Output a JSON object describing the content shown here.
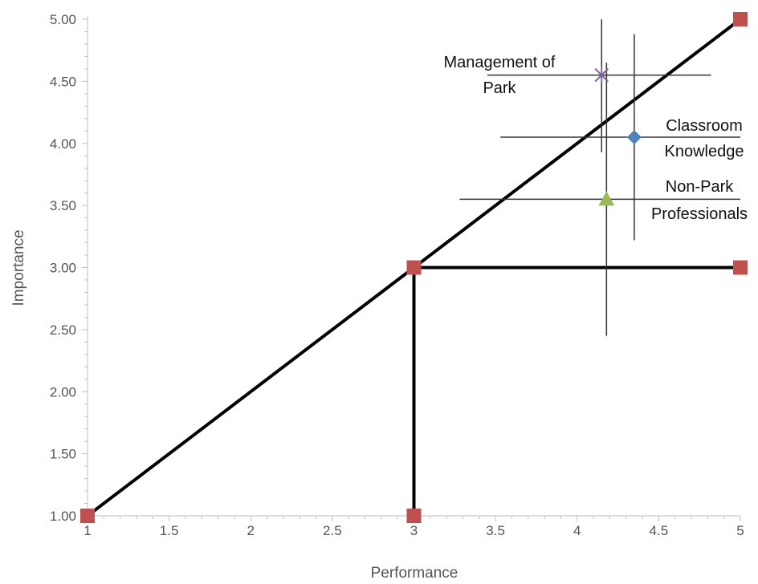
{
  "chart_data": {
    "type": "scatter",
    "title": "",
    "xlabel": "Performance",
    "ylabel": "Importance",
    "xlim": [
      1,
      5
    ],
    "ylim": [
      1,
      5
    ],
    "x_ticks": [
      "1",
      "1.5",
      "2",
      "2.5",
      "3",
      "3.5",
      "4",
      "4.5",
      "5"
    ],
    "y_ticks": [
      "1.00",
      "1.50",
      "2.00",
      "2.50",
      "3.00",
      "3.50",
      "4.00",
      "4.50",
      "5.00"
    ],
    "grid": false,
    "reference_lines": [
      {
        "points": [
          [
            1,
            1
          ],
          [
            5,
            5
          ]
        ],
        "color": "#000000"
      },
      {
        "points": [
          [
            3,
            3
          ],
          [
            5,
            3
          ]
        ],
        "color": "#000000"
      },
      {
        "points": [
          [
            3,
            1
          ],
          [
            3,
            3
          ]
        ],
        "color": "#000000"
      }
    ],
    "reference_markers": {
      "points": [
        [
          1,
          1
        ],
        [
          3,
          1
        ],
        [
          3,
          3
        ],
        [
          5,
          3
        ],
        [
          5,
          5
        ]
      ],
      "color": "#c0504d"
    },
    "series": [
      {
        "label_lines": [
          "Management of",
          "Park"
        ],
        "x": 4.15,
        "y": 4.55,
        "x_range": [
          3.45,
          4.82
        ],
        "y_range": [
          3.93,
          5.0
        ],
        "marker": "star",
        "color": "#8064a2"
      },
      {
        "label_lines": [
          "Classroom",
          "Knowledge"
        ],
        "x": 4.35,
        "y": 4.05,
        "x_range": [
          3.53,
          5.0
        ],
        "y_range": [
          3.22,
          4.88
        ],
        "marker": "diamond",
        "color": "#4f81bd"
      },
      {
        "label_lines": [
          "Non-Park",
          "Professionals"
        ],
        "x": 4.18,
        "y": 3.55,
        "x_range": [
          3.28,
          5.0
        ],
        "y_range": [
          2.45,
          4.65
        ],
        "marker": "triangle",
        "color": "#9bbb59"
      }
    ]
  }
}
